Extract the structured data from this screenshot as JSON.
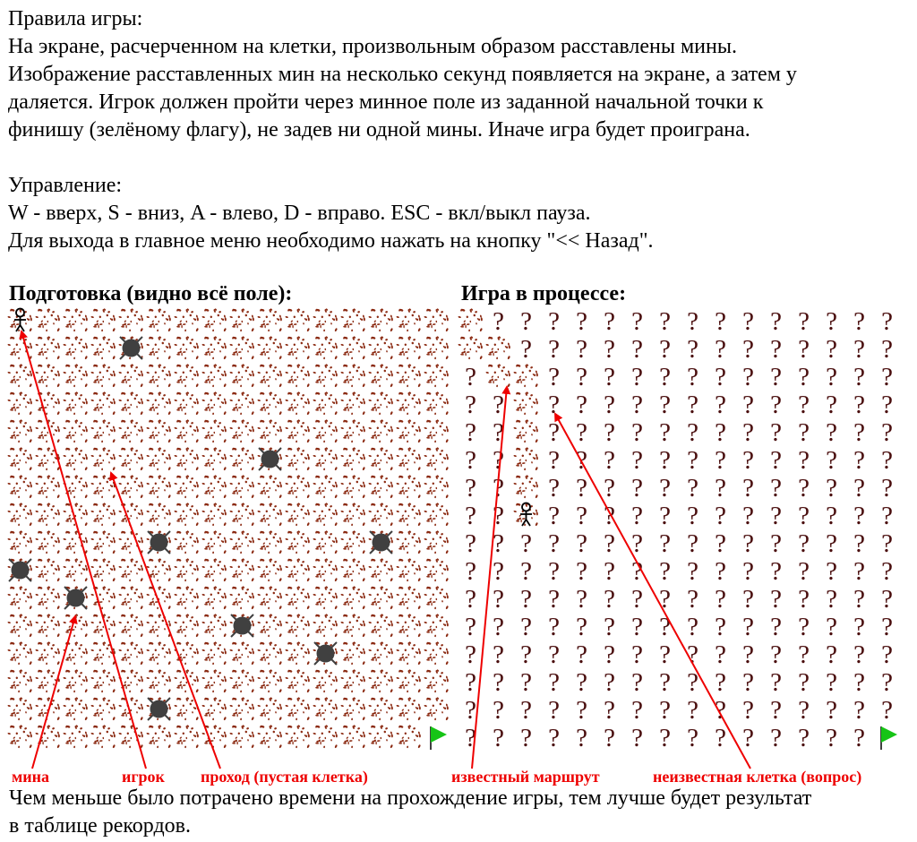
{
  "rules": {
    "title": "Правила игры:",
    "line1": "На экране, расчерченном на клетки, произвольным образом расставлены мины.",
    "line2": "Изображение расставленных мин на несколько секунд появляется на экране, а затем у",
    "line3": "даляется. Игрок должен пройти через минное поле из заданной начальной точки к",
    "line4": "финишу (зелёному флагу), не задев ни одной мины. Иначе игра будет проиграна."
  },
  "controls": {
    "title": "Управление:",
    "line1": "W - вверх, S - вниз, A - влево, D - вправо. ESC - вкл/выкл пауза.",
    "line2": "Для выхода в главное меню необходимо нажать на кнопку \"<< Назад\"."
  },
  "boards": {
    "left_title": "Подготовка (видно всё поле):",
    "right_title": "Игра в процессе:",
    "grid_size": 16,
    "left": {
      "player": [
        0,
        0
      ],
      "mines": [
        [
          1,
          4
        ],
        [
          5,
          9
        ],
        [
          8,
          5
        ],
        [
          8,
          13
        ],
        [
          9,
          0
        ],
        [
          10,
          2
        ],
        [
          11,
          8
        ],
        [
          12,
          11
        ],
        [
          14,
          5
        ]
      ],
      "finish": [
        15,
        15
      ]
    },
    "right": {
      "player": [
        7,
        2
      ],
      "revealed": [
        [
          0,
          0
        ],
        [
          1,
          0
        ],
        [
          1,
          1
        ],
        [
          2,
          1
        ],
        [
          2,
          2
        ],
        [
          3,
          2
        ],
        [
          4,
          2
        ],
        [
          5,
          2
        ],
        [
          6,
          2
        ],
        [
          7,
          2
        ]
      ],
      "finish": [
        15,
        15
      ],
      "unknown_symbol": "?"
    }
  },
  "callouts": {
    "mine": "мина",
    "player": "игрок",
    "passage": "проход (пустая клетка)",
    "known_route": "известный маршрут",
    "unknown_cell": "неизвестная клетка (вопрос)"
  },
  "footer": {
    "line1": "Чем меньше было потрачено времени на прохождение игры, тем лучше будет результат",
    "line2": "в таблице рекордов."
  },
  "colors": {
    "dirt": "#8b2a12",
    "mine": "#404040",
    "question": "#4a0e0e",
    "flag": "#16c416",
    "callout": "#ee0000"
  }
}
